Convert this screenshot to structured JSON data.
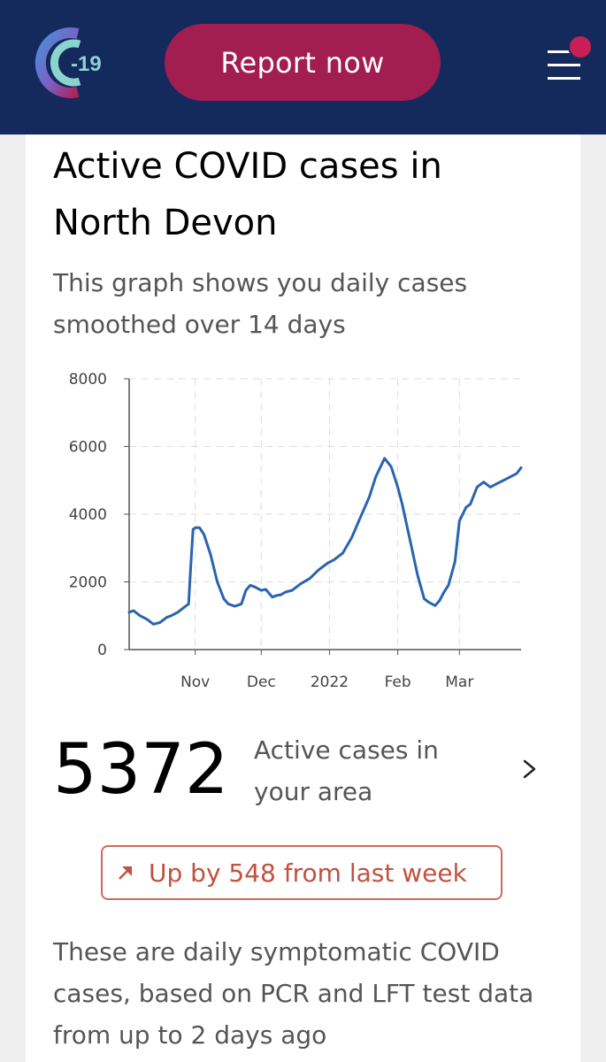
{
  "header": {
    "logo_text": "-19",
    "report_button_label": "Report now",
    "colors": {
      "background": "#152a5c",
      "button": "#a21d50",
      "notification": "#c81f55"
    }
  },
  "card": {
    "title": "Active COVID cases in North Devon",
    "subtitle": "This graph shows you daily cases smoothed over 14 days",
    "active_cases": "5372",
    "active_cases_label": "Active cases in your area",
    "trend_text": "Up by 548 from last week",
    "footnote": "These are daily symptomatic COVID cases, based on PCR and LFT test data from up to 2 days ago"
  },
  "chart_data": {
    "type": "line",
    "title": "",
    "xlabel": "",
    "ylabel": "",
    "ylim": [
      0,
      8000
    ],
    "yticks": [
      0,
      2000,
      4000,
      6000,
      8000
    ],
    "xtick_labels": [
      {
        "label": "Nov",
        "date": "2021-11-01"
      },
      {
        "label": "Dec",
        "date": "2021-12-01"
      },
      {
        "label": "2022",
        "date": "2022-01-01"
      },
      {
        "label": "Feb",
        "date": "2022-02-01"
      },
      {
        "label": "Mar",
        "date": "2022-03-01"
      }
    ],
    "xlim": [
      "2021-10-02",
      "2022-03-29"
    ],
    "grid": true,
    "line_color": "#2b63b0",
    "series": [
      {
        "x": [
          "2021-10-02",
          "2021-10-04",
          "2021-10-07",
          "2021-10-10",
          "2021-10-13",
          "2021-10-16",
          "2021-10-19",
          "2021-10-21",
          "2021-10-24",
          "2021-10-27",
          "2021-10-29",
          "2021-10-30",
          "2021-10-31",
          "2021-11-01",
          "2021-11-03",
          "2021-11-05",
          "2021-11-08",
          "2021-11-11",
          "2021-11-14",
          "2021-11-16",
          "2021-11-19",
          "2021-11-22",
          "2021-11-24",
          "2021-11-26",
          "2021-11-28",
          "2021-12-01",
          "2021-12-03",
          "2021-12-06",
          "2021-12-08",
          "2021-12-10",
          "2021-12-12",
          "2021-12-15",
          "2021-12-19",
          "2021-12-23",
          "2021-12-27",
          "2021-12-31",
          "2022-01-03",
          "2022-01-07",
          "2022-01-11",
          "2022-01-15",
          "2022-01-19",
          "2022-01-22",
          "2022-01-26",
          "2022-01-29",
          "2022-02-01",
          "2022-02-03",
          "2022-02-07",
          "2022-02-10",
          "2022-02-13",
          "2022-02-15",
          "2022-02-18",
          "2022-02-20",
          "2022-02-22",
          "2022-02-24",
          "2022-02-27",
          "2022-03-01",
          "2022-03-04",
          "2022-03-06",
          "2022-03-09",
          "2022-03-12",
          "2022-03-15",
          "2022-03-18",
          "2022-03-21",
          "2022-03-24",
          "2022-03-27",
          "2022-03-29"
        ],
        "values": [
          1100,
          1150,
          1000,
          900,
          750,
          800,
          950,
          1000,
          1100,
          1250,
          1350,
          2500,
          3550,
          3600,
          3600,
          3400,
          2800,
          2000,
          1500,
          1350,
          1280,
          1350,
          1750,
          1900,
          1850,
          1750,
          1780,
          1550,
          1600,
          1620,
          1700,
          1750,
          1950,
          2100,
          2350,
          2550,
          2650,
          2850,
          3300,
          3900,
          4500,
          5100,
          5650,
          5400,
          4800,
          4300,
          3100,
          2200,
          1500,
          1400,
          1300,
          1450,
          1700,
          1900,
          2600,
          3800,
          4200,
          4300,
          4800,
          4950,
          4800,
          4900,
          5000,
          5100,
          5200,
          5372
        ]
      }
    ]
  }
}
